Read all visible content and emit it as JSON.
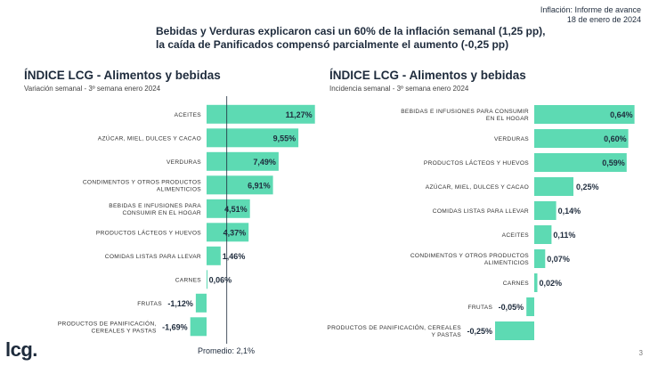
{
  "report": {
    "line1": "Inflación: Informe de avance",
    "line2": "18 de enero de 2024"
  },
  "headline": {
    "line1": "Bebidas y Verduras explicaron casi un 60% de la inflación semanal (1,25 pp),",
    "line2": "la caída de Panificados compensó parcialmente el aumento (-0,25 pp)"
  },
  "footer": {
    "logo": "lcg.",
    "page": "3",
    "average_label": "Promedio: 2,1%"
  },
  "colors": {
    "bar": "#5ddab3",
    "text": "#1e2b3c",
    "line": "#1e2b3c"
  },
  "chart_data": [
    {
      "type": "bar",
      "orientation": "horizontal",
      "title": "ÍNDICE LCG - Alimentos y bebidas",
      "subtitle": "Variación semanal - 3º semana enero 2024",
      "categories": [
        "ACEITES",
        "AZÚCAR, MIEL, DULCES Y CACAO",
        "VERDURAS",
        "CONDIMENTOS Y OTROS PRODUCTOS ALIMENTICIOS",
        "BEBIDAS E INFUSIONES PARA CONSUMIR EN EL HOGAR",
        "PRODUCTOS LÁCTEOS Y HUEVOS",
        "COMIDAS LISTAS PARA LLEVAR",
        "CARNES",
        "FRUTAS",
        "PRODUCTOS DE PANIFICACIÓN, CEREALES Y PASTAS"
      ],
      "values": [
        11.27,
        9.55,
        7.49,
        6.91,
        4.51,
        4.37,
        1.46,
        0.06,
        -1.12,
        -1.69
      ],
      "labels": [
        "11,27%",
        "9,55%",
        "7,49%",
        "6,91%",
        "4,51%",
        "4,37%",
        "1,46%",
        "0,06%",
        "-1,12%",
        "-1,69%"
      ],
      "reference_line": {
        "value": 2.1,
        "label": "Promedio: 2,1%"
      }
    },
    {
      "type": "bar",
      "orientation": "horizontal",
      "title": "ÍNDICE LCG - Alimentos y bebidas",
      "subtitle": "Incidencia semanal - 3º semana enero 2024",
      "categories": [
        "BEBIDAS E INFUSIONES PARA CONSUMIR EN EL HOGAR",
        "VERDURAS",
        "PRODUCTOS LÁCTEOS Y HUEVOS",
        "AZÚCAR, MIEL, DULCES Y CACAO",
        "COMIDAS LISTAS PARA LLEVAR",
        "ACEITES",
        "CONDIMENTOS Y OTROS PRODUCTOS ALIMENTICIOS",
        "CARNES",
        "FRUTAS",
        "PRODUCTOS DE PANIFICACIÓN, CEREALES Y PASTAS"
      ],
      "values": [
        0.64,
        0.6,
        0.59,
        0.25,
        0.14,
        0.11,
        0.07,
        0.02,
        -0.05,
        -0.25
      ],
      "labels": [
        "0,64%",
        "0,60%",
        "0,59%",
        "0,25%",
        "0,14%",
        "0,11%",
        "0,07%",
        "0,02%",
        "-0,05%",
        "-0,25%"
      ]
    }
  ]
}
